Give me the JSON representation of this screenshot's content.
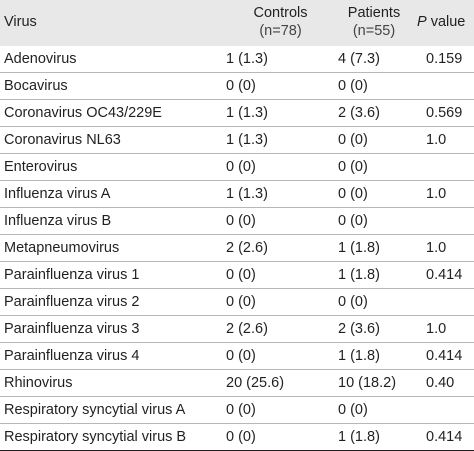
{
  "headers": {
    "virus": "Virus",
    "controls": "Controls",
    "controls_n": "(n=78)",
    "patients": "Patients",
    "patients_n": "(n=55)",
    "p_italic": "P",
    "p_rest": " value"
  },
  "rows": [
    {
      "virus": "Adenovirus",
      "controls": "1 (1.3)",
      "patients": "4 (7.3)",
      "p": "0.159"
    },
    {
      "virus": "Bocavirus",
      "controls": "0 (0)",
      "patients": "0 (0)",
      "p": ""
    },
    {
      "virus": "Coronavirus OC43/229E",
      "controls": "1 (1.3)",
      "patients": "2 (3.6)",
      "p": "0.569"
    },
    {
      "virus": "Coronavirus NL63",
      "controls": "1 (1.3)",
      "patients": "0 (0)",
      "p": "1.0"
    },
    {
      "virus": "Enterovirus",
      "controls": "0 (0)",
      "patients": "0 (0)",
      "p": ""
    },
    {
      "virus": "Influenza virus A",
      "controls": "1 (1.3)",
      "patients": "0 (0)",
      "p": "1.0"
    },
    {
      "virus": "Influenza virus B",
      "controls": "0 (0)",
      "patients": "0 (0)",
      "p": ""
    },
    {
      "virus": "Metapneumovirus",
      "controls": "2 (2.6)",
      "patients": "1 (1.8)",
      "p": "1.0"
    },
    {
      "virus": "Parainfluenza virus 1",
      "controls": "0 (0)",
      "patients": "1 (1.8)",
      "p": "0.414"
    },
    {
      "virus": "Parainfluenza virus 2",
      "controls": "0 (0)",
      "patients": "0 (0)",
      "p": ""
    },
    {
      "virus": "Parainfluenza virus 3",
      "controls": "2 (2.6)",
      "patients": "2 (3.6)",
      "p": "1.0"
    },
    {
      "virus": "Parainfluenza virus 4",
      "controls": "0 (0)",
      "patients": "1 (1.8)",
      "p": "0.414"
    },
    {
      "virus": "Rhinovirus",
      "controls": "20 (25.6)",
      "patients": "10 (18.2)",
      "p": "0.40"
    },
    {
      "virus": "Respiratory syncytial virus A",
      "controls": "0 (0)",
      "patients": "0 (0)",
      "p": ""
    },
    {
      "virus": "Respiratory syncytial virus B",
      "controls": "0 (0)",
      "patients": "1 (1.8)",
      "p": "0.414"
    }
  ]
}
